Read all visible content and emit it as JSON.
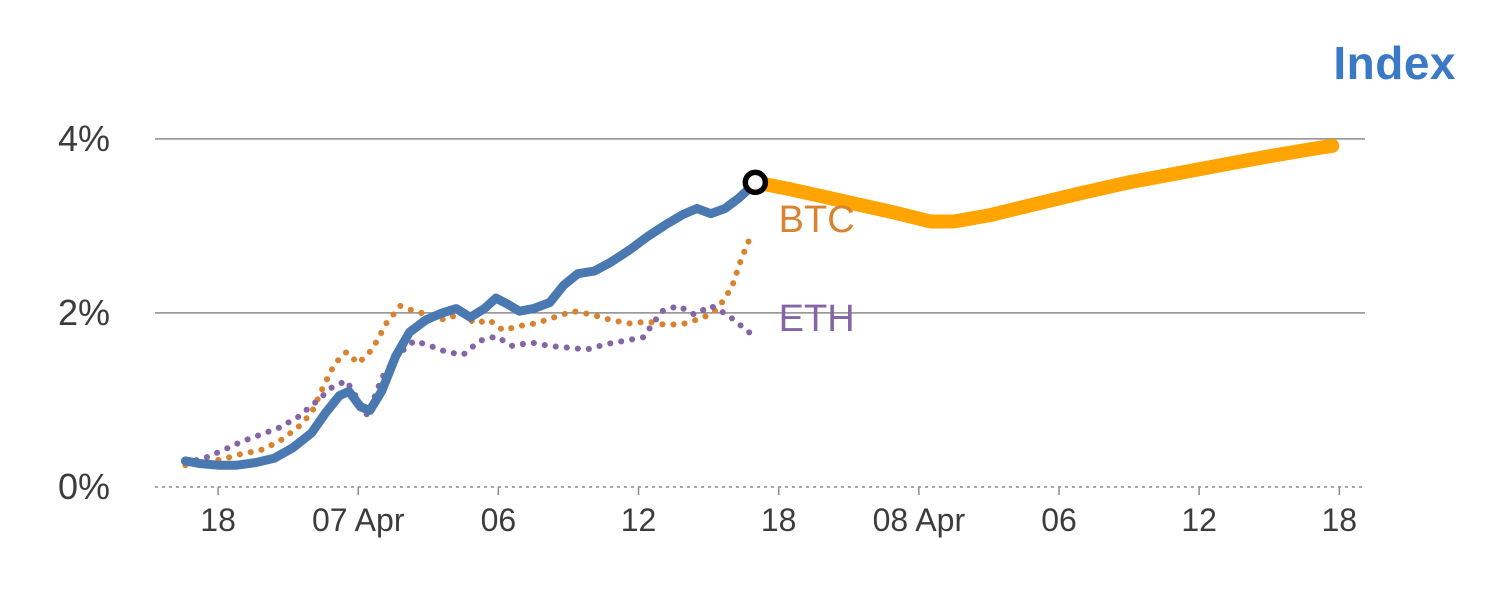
{
  "chart_data": {
    "type": "line",
    "title": "Index",
    "title_color": "#3b79c6",
    "x_unit": "hours since 06 Apr 00:00",
    "xlim": [
      15.3,
      67.1
    ],
    "ylim": [
      0,
      4.4
    ],
    "grid": {
      "solid_at": [
        2,
        4
      ],
      "dashed_at": [
        0
      ],
      "color": "#8c8c8c",
      "legend_position": "none"
    },
    "y_ticks": [
      {
        "value": 0,
        "label": "0%"
      },
      {
        "value": 2,
        "label": "2%"
      },
      {
        "value": 4,
        "label": "4%"
      }
    ],
    "x_ticks": [
      {
        "value": 18,
        "label": "18"
      },
      {
        "value": 24,
        "label": "07 Apr"
      },
      {
        "value": 30,
        "label": "06"
      },
      {
        "value": 36,
        "label": "12"
      },
      {
        "value": 42,
        "label": "18"
      },
      {
        "value": 48,
        "label": "08 Apr"
      },
      {
        "value": 54,
        "label": "06"
      },
      {
        "value": 60,
        "label": "12"
      },
      {
        "value": 66,
        "label": "18"
      }
    ],
    "series": [
      {
        "name": "BTC",
        "style": "dotted",
        "color": "#d9822f",
        "width": 6,
        "points": [
          [
            16.6,
            0.25
          ],
          [
            17.4,
            0.28
          ],
          [
            18.2,
            0.32
          ],
          [
            19.0,
            0.38
          ],
          [
            19.8,
            0.42
          ],
          [
            20.6,
            0.52
          ],
          [
            21.4,
            0.68
          ],
          [
            22.0,
            0.85
          ],
          [
            22.5,
            1.15
          ],
          [
            23.0,
            1.42
          ],
          [
            23.5,
            1.55
          ],
          [
            24.0,
            1.42
          ],
          [
            24.6,
            1.58
          ],
          [
            25.2,
            1.88
          ],
          [
            25.8,
            2.08
          ],
          [
            26.4,
            2.02
          ],
          [
            27.0,
            1.98
          ],
          [
            27.7,
            1.92
          ],
          [
            28.4,
            2.0
          ],
          [
            29.0,
            1.88
          ],
          [
            29.6,
            1.92
          ],
          [
            30.2,
            1.8
          ],
          [
            30.9,
            1.85
          ],
          [
            31.6,
            1.88
          ],
          [
            32.4,
            1.95
          ],
          [
            33.2,
            2.02
          ],
          [
            34.0,
            1.98
          ],
          [
            34.8,
            1.92
          ],
          [
            35.6,
            1.88
          ],
          [
            36.4,
            1.9
          ],
          [
            37.2,
            1.86
          ],
          [
            38.0,
            1.88
          ],
          [
            38.8,
            1.95
          ],
          [
            39.4,
            2.05
          ],
          [
            40.0,
            2.3
          ],
          [
            40.4,
            2.62
          ],
          [
            40.8,
            2.88
          ]
        ]
      },
      {
        "name": "ETH",
        "style": "dotted",
        "color": "#8565a5",
        "width": 6,
        "points": [
          [
            16.6,
            0.28
          ],
          [
            17.4,
            0.33
          ],
          [
            18.2,
            0.42
          ],
          [
            19.0,
            0.52
          ],
          [
            19.8,
            0.6
          ],
          [
            20.6,
            0.68
          ],
          [
            21.4,
            0.8
          ],
          [
            22.2,
            0.98
          ],
          [
            22.9,
            1.15
          ],
          [
            23.5,
            1.22
          ],
          [
            24.0,
            1.0
          ],
          [
            24.4,
            0.82
          ],
          [
            25.0,
            1.25
          ],
          [
            25.7,
            1.52
          ],
          [
            26.4,
            1.68
          ],
          [
            27.1,
            1.62
          ],
          [
            27.8,
            1.55
          ],
          [
            28.5,
            1.52
          ],
          [
            29.2,
            1.68
          ],
          [
            29.9,
            1.73
          ],
          [
            30.6,
            1.62
          ],
          [
            31.4,
            1.66
          ],
          [
            32.2,
            1.62
          ],
          [
            33.0,
            1.6
          ],
          [
            33.8,
            1.58
          ],
          [
            34.6,
            1.64
          ],
          [
            35.4,
            1.68
          ],
          [
            36.2,
            1.72
          ],
          [
            37.0,
            2.02
          ],
          [
            37.7,
            2.08
          ],
          [
            38.4,
            1.98
          ],
          [
            39.1,
            2.08
          ],
          [
            39.8,
            1.98
          ],
          [
            40.4,
            1.85
          ],
          [
            41.0,
            1.72
          ]
        ]
      },
      {
        "name": "index-history",
        "style": "solid",
        "color": "#4a78b0",
        "width": 9,
        "points": [
          [
            16.6,
            0.3
          ],
          [
            17.2,
            0.27
          ],
          [
            18.0,
            0.25
          ],
          [
            18.8,
            0.25
          ],
          [
            19.6,
            0.28
          ],
          [
            20.4,
            0.33
          ],
          [
            21.2,
            0.45
          ],
          [
            22.0,
            0.62
          ],
          [
            22.6,
            0.85
          ],
          [
            23.2,
            1.05
          ],
          [
            23.6,
            1.1
          ],
          [
            24.1,
            0.92
          ],
          [
            24.5,
            0.88
          ],
          [
            25.0,
            1.1
          ],
          [
            25.6,
            1.5
          ],
          [
            26.2,
            1.78
          ],
          [
            26.9,
            1.92
          ],
          [
            27.6,
            2.0
          ],
          [
            28.2,
            2.05
          ],
          [
            28.8,
            1.95
          ],
          [
            29.4,
            2.05
          ],
          [
            29.9,
            2.17
          ],
          [
            30.4,
            2.1
          ],
          [
            30.9,
            2.02
          ],
          [
            31.5,
            2.05
          ],
          [
            32.2,
            2.12
          ],
          [
            32.8,
            2.32
          ],
          [
            33.4,
            2.45
          ],
          [
            34.1,
            2.48
          ],
          [
            34.8,
            2.58
          ],
          [
            35.6,
            2.72
          ],
          [
            36.4,
            2.88
          ],
          [
            37.2,
            3.02
          ],
          [
            37.9,
            3.13
          ],
          [
            38.5,
            3.2
          ],
          [
            39.1,
            3.14
          ],
          [
            39.7,
            3.2
          ],
          [
            40.3,
            3.32
          ],
          [
            40.7,
            3.42
          ],
          [
            41.0,
            3.5
          ]
        ]
      },
      {
        "name": "index-forecast",
        "style": "solid",
        "color": "#ffa400",
        "width": 14,
        "points": [
          [
            41.0,
            3.5
          ],
          [
            42.5,
            3.42
          ],
          [
            44.0,
            3.33
          ],
          [
            45.5,
            3.24
          ],
          [
            47.0,
            3.15
          ],
          [
            48.5,
            3.05
          ],
          [
            49.5,
            3.05
          ],
          [
            51.0,
            3.12
          ],
          [
            53.0,
            3.25
          ],
          [
            55.0,
            3.38
          ],
          [
            57.0,
            3.5
          ],
          [
            59.0,
            3.6
          ],
          [
            61.0,
            3.7
          ],
          [
            63.0,
            3.8
          ],
          [
            65.0,
            3.89
          ],
          [
            65.7,
            3.92
          ]
        ]
      }
    ],
    "marker": {
      "x": 41.0,
      "y": 3.5,
      "shape": "ring",
      "stroke": "#000000",
      "fill": "#ffffff"
    },
    "annotations": [
      {
        "text": "BTC",
        "x": 42.0,
        "y": 3.07,
        "color": "#d9822f"
      },
      {
        "text": "ETH",
        "x": 42.0,
        "y": 1.93,
        "color": "#8565a5"
      }
    ]
  }
}
